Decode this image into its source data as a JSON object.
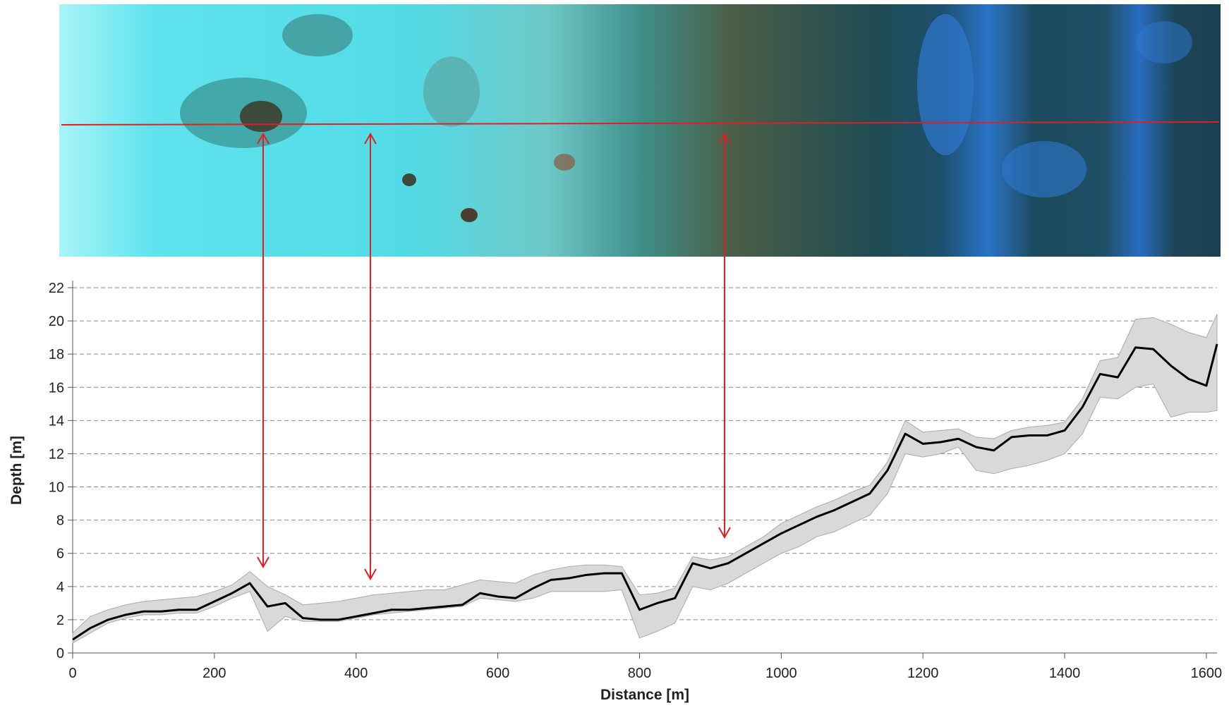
{
  "chart_data": {
    "type": "line",
    "x_label": "Distance [m]",
    "y_label": "Depth [m]",
    "x": [
      0,
      25,
      50,
      75,
      100,
      125,
      150,
      175,
      200,
      225,
      250,
      275,
      300,
      325,
      350,
      375,
      400,
      425,
      450,
      475,
      500,
      525,
      550,
      575,
      600,
      625,
      650,
      675,
      700,
      725,
      750,
      775,
      800,
      825,
      850,
      875,
      900,
      925,
      950,
      975,
      1000,
      1025,
      1050,
      1075,
      1100,
      1125,
      1150,
      1175,
      1200,
      1225,
      1250,
      1275,
      1300,
      1325,
      1350,
      1375,
      1400,
      1425,
      1450,
      1475,
      1500,
      1525,
      1550,
      1575,
      1600,
      1615
    ],
    "series": [
      {
        "color": "#000000",
        "values": [
          0.8,
          1.5,
          2.0,
          2.3,
          2.5,
          2.5,
          2.6,
          2.6,
          3.1,
          3.6,
          4.2,
          2.8,
          3.0,
          2.1,
          2.0,
          2.0,
          2.2,
          2.4,
          2.6,
          2.6,
          2.7,
          2.8,
          2.9,
          3.6,
          3.4,
          3.3,
          3.9,
          4.4,
          4.5,
          4.7,
          4.8,
          4.8,
          2.6,
          3.0,
          3.3,
          5.4,
          5.1,
          5.4,
          6.0,
          6.6,
          7.2,
          7.7,
          8.2,
          8.6,
          9.1,
          9.6,
          11.0,
          13.2,
          12.6,
          12.7,
          12.9,
          12.4,
          12.2,
          13.0,
          13.1,
          13.1,
          13.4,
          14.8,
          16.8,
          16.6,
          18.4,
          18.3,
          17.3,
          16.5,
          16.1,
          18.6
        ]
      }
    ],
    "band": {
      "color": "#d9d9d9",
      "lower": [
        0.6,
        1.2,
        1.8,
        2.1,
        2.3,
        2.3,
        2.4,
        2.4,
        2.8,
        3.3,
        3.7,
        1.3,
        2.2,
        1.9,
        1.9,
        1.9,
        2.1,
        2.3,
        2.4,
        2.5,
        2.6,
        2.7,
        2.8,
        3.3,
        3.2,
        3.1,
        3.3,
        3.7,
        3.7,
        3.7,
        3.7,
        3.8,
        0.9,
        1.3,
        1.8,
        4.0,
        3.8,
        4.2,
        4.8,
        5.4,
        6.0,
        6.4,
        7.0,
        7.3,
        7.8,
        8.3,
        9.6,
        12.0,
        11.8,
        12.0,
        12.4,
        11.0,
        10.8,
        11.1,
        11.3,
        11.6,
        12.0,
        13.2,
        15.4,
        15.3,
        16.0,
        16.2,
        14.2,
        14.5,
        14.5,
        14.6
      ],
      "upper": [
        1.2,
        2.2,
        2.6,
        2.9,
        3.1,
        3.2,
        3.3,
        3.4,
        3.7,
        4.1,
        4.9,
        4.0,
        3.5,
        2.9,
        3.0,
        3.1,
        3.3,
        3.5,
        3.6,
        3.7,
        3.8,
        3.8,
        4.1,
        4.4,
        4.3,
        4.2,
        4.7,
        5.0,
        5.2,
        5.3,
        5.3,
        5.2,
        3.5,
        3.6,
        3.9,
        5.8,
        5.6,
        5.8,
        6.4,
        7.0,
        7.8,
        8.3,
        8.8,
        9.2,
        9.7,
        10.1,
        11.5,
        14.0,
        13.3,
        13.4,
        13.5,
        13.0,
        12.9,
        13.4,
        13.6,
        13.7,
        13.9,
        15.3,
        17.6,
        17.8,
        20.1,
        20.2,
        19.8,
        19.3,
        19.0,
        20.4
      ]
    },
    "xlim": [
      0,
      1615
    ],
    "ylim": [
      0,
      22
    ],
    "xticks": [
      0,
      200,
      400,
      600,
      800,
      1000,
      1200,
      1400,
      1600
    ],
    "yticks": [
      0,
      2,
      4,
      6,
      8,
      10,
      12,
      14,
      16,
      18,
      20,
      22
    ],
    "grid": true
  }
}
